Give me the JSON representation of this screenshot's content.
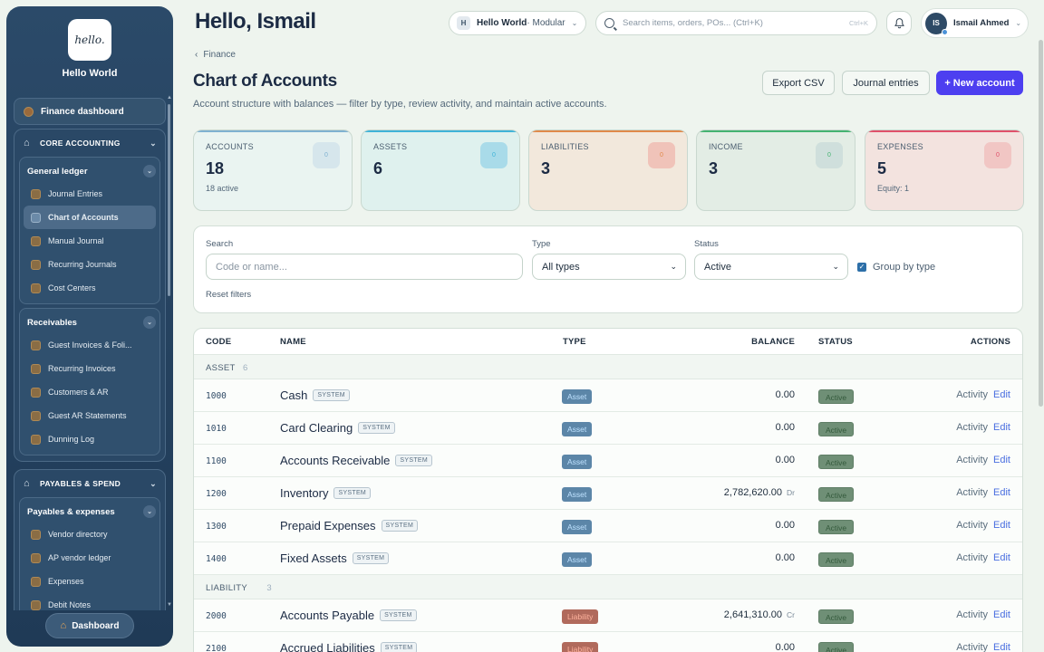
{
  "brand": {
    "logo_text": "hello.",
    "name": "Hello World"
  },
  "sidebar": {
    "finance_dashboard": "Finance dashboard",
    "core": {
      "label": "CORE ACCOUNTING",
      "general_ledger": {
        "label": "General ledger",
        "items": [
          "Journal Entries",
          "Chart of Accounts",
          "Manual Journal",
          "Recurring Journals",
          "Cost Centers"
        ]
      },
      "receivables": {
        "label": "Receivables",
        "items": [
          "Guest Invoices & Foli...",
          "Recurring Invoices",
          "Customers & AR",
          "Guest AR Statements",
          "Dunning Log"
        ]
      }
    },
    "payables": {
      "label": "PAYABLES & SPEND",
      "sub": {
        "label": "Payables & expenses",
        "items": [
          "Vendor directory",
          "AP vendor ledger",
          "Expenses",
          "Debit Notes"
        ]
      }
    },
    "dashboard_button": "Dashboard"
  },
  "topbar": {
    "greeting": "Hello, Ismail",
    "workspace": {
      "badge": "H",
      "name": "Hello World",
      "mode": " · Modular"
    },
    "search_placeholder": "Search items, orders, POs... (Ctrl+K)",
    "shortcut": "Ctrl+K",
    "user": {
      "initials": "IS",
      "name": "Ismail Ahmed"
    }
  },
  "page": {
    "breadcrumb": "Finance",
    "title": "Chart of Accounts",
    "subtitle": "Account structure with balances — filter by type, review activity, and maintain active accounts.",
    "buttons": {
      "export": "Export CSV",
      "journal": "Journal entries",
      "new": "+ New account"
    }
  },
  "stats": [
    {
      "label": "ACCOUNTS",
      "value": "18",
      "sub": "18 active",
      "icon": "0",
      "accent": "#7fb1d1",
      "bg": "#eaf4f1",
      "ico_bg": "#d6e6ec"
    },
    {
      "label": "ASSETS",
      "value": "6",
      "sub": "",
      "icon": "0",
      "accent": "#3fb3d8",
      "bg": "#dff1ee",
      "ico_bg": "#a9dbe9"
    },
    {
      "label": "LIABILITIES",
      "value": "3",
      "sub": "",
      "icon": "0",
      "accent": "#e08a4a",
      "bg": "#f2e8dc",
      "ico_bg": "#f0c3b9"
    },
    {
      "label": "INCOME",
      "value": "3",
      "sub": "",
      "icon": "0",
      "accent": "#45b372",
      "bg": "#e3ede5",
      "ico_bg": "#cfdfdc"
    },
    {
      "label": "EXPENSES",
      "value": "5",
      "sub": "Equity: 1",
      "icon": "0",
      "accent": "#e0506a",
      "bg": "#f3e3df",
      "ico_bg": "#f1c6c4"
    }
  ],
  "filters": {
    "search_label": "Search",
    "search_placeholder": "Code or name...",
    "type_label": "Type",
    "type_value": "All types",
    "status_label": "Status",
    "status_value": "Active",
    "group_by_label": "Group by type",
    "reset": "Reset filters"
  },
  "table": {
    "headers": {
      "code": "CODE",
      "name": "NAME",
      "type": "TYPE",
      "balance": "BALANCE",
      "status": "STATUS",
      "actions": "ACTIONS"
    },
    "groups": [
      {
        "label": "ASSET",
        "count": "6"
      },
      {
        "label": "LIABILITY",
        "count": "3"
      }
    ],
    "rows": [
      {
        "code": "1000",
        "name": "Cash",
        "system": "SYSTEM",
        "type": "Asset",
        "balance": "0.00",
        "dc": "",
        "status": "Active"
      },
      {
        "code": "1010",
        "name": "Card Clearing",
        "system": "SYSTEM",
        "type": "Asset",
        "balance": "0.00",
        "dc": "",
        "status": "Active"
      },
      {
        "code": "1100",
        "name": "Accounts Receivable",
        "system": "SYSTEM",
        "type": "Asset",
        "balance": "0.00",
        "dc": "",
        "status": "Active"
      },
      {
        "code": "1200",
        "name": "Inventory",
        "system": "SYSTEM",
        "type": "Asset",
        "balance": "2,782,620.00",
        "dc": "Dr",
        "status": "Active"
      },
      {
        "code": "1300",
        "name": "Prepaid Expenses",
        "system": "SYSTEM",
        "type": "Asset",
        "balance": "0.00",
        "dc": "",
        "status": "Active"
      },
      {
        "code": "1400",
        "name": "Fixed Assets",
        "system": "SYSTEM",
        "type": "Asset",
        "balance": "0.00",
        "dc": "",
        "status": "Active"
      },
      {
        "code": "2000",
        "name": "Accounts Payable",
        "system": "SYSTEM",
        "type": "Liability",
        "balance": "2,641,310.00",
        "dc": "Cr",
        "status": "Active"
      },
      {
        "code": "2100",
        "name": "Accrued Liabilities",
        "system": "SYSTEM",
        "type": "Liability",
        "balance": "0.00",
        "dc": "",
        "status": "Active"
      }
    ],
    "actions": {
      "activity": "Activity",
      "edit": "Edit"
    }
  }
}
